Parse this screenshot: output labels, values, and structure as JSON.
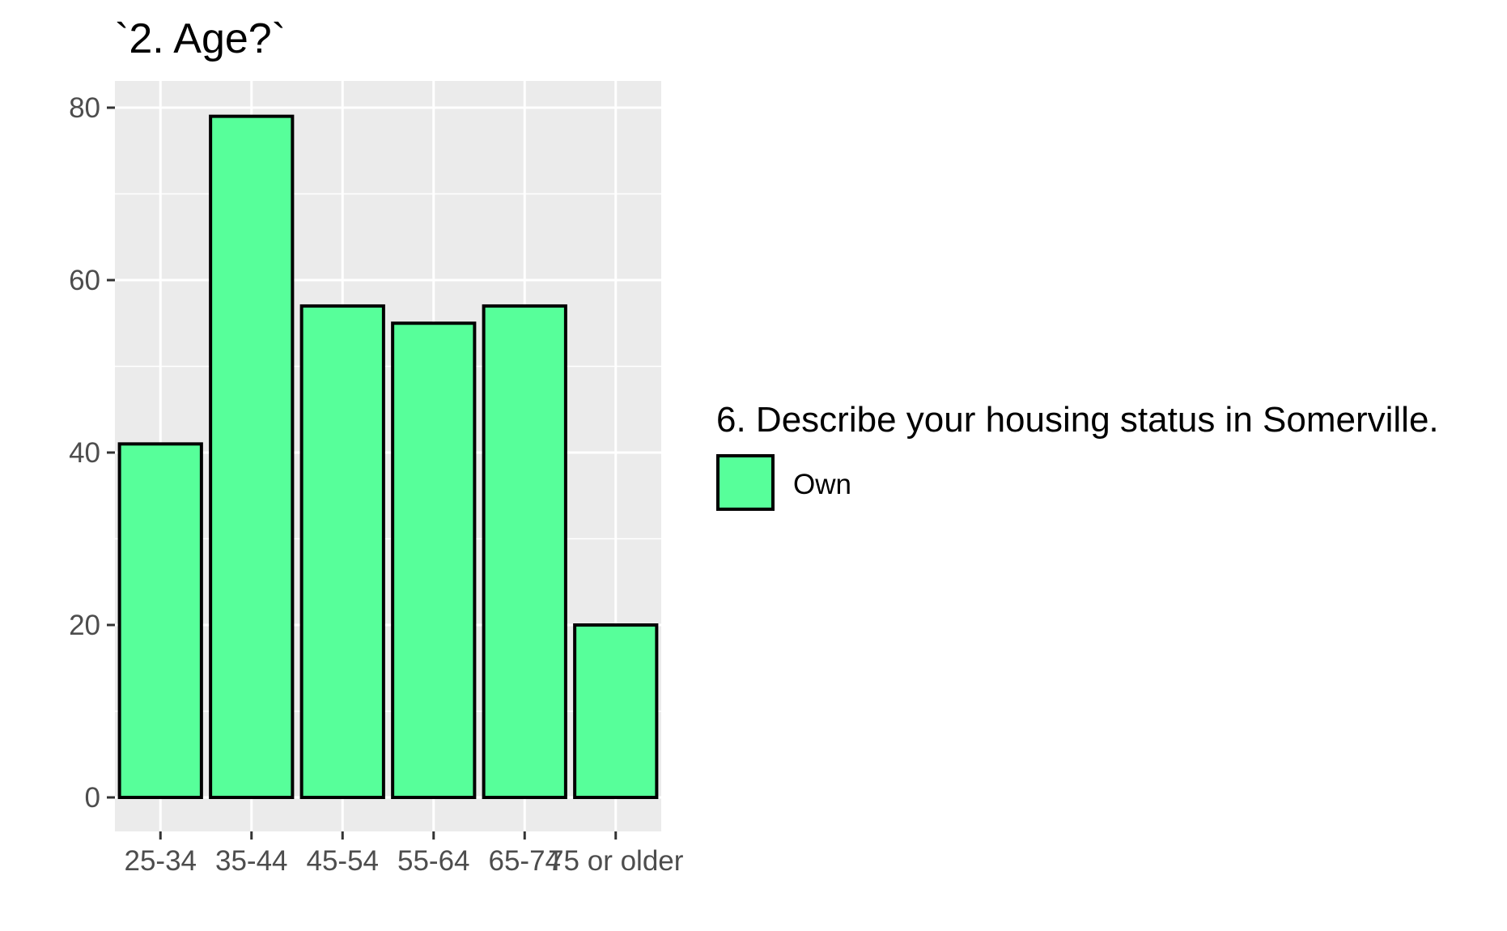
{
  "chart_data": {
    "type": "bar",
    "title": "`2. Age?`",
    "xlabel": "",
    "ylabel": "",
    "categories": [
      "25-34",
      "35-44",
      "45-54",
      "55-64",
      "65-74",
      "75 or older"
    ],
    "values": [
      41,
      79,
      57,
      55,
      57,
      20
    ],
    "ylim": [
      0,
      83
    ],
    "yticks": [
      0,
      20,
      40,
      60,
      80
    ],
    "ytick_labels": [
      "0",
      "20",
      "40",
      "60",
      "80"
    ],
    "grid": true,
    "legend": {
      "title": "6. Describe your housing status in Somerville.",
      "entries": [
        {
          "label": "Own",
          "color": "#57FF9A"
        }
      ],
      "position": "right"
    },
    "colors": {
      "bar_fill": "#57FF9A",
      "bar_outline": "#000000",
      "panel_background": "#EBEBEB",
      "grid_line": "#FFFFFF"
    }
  }
}
